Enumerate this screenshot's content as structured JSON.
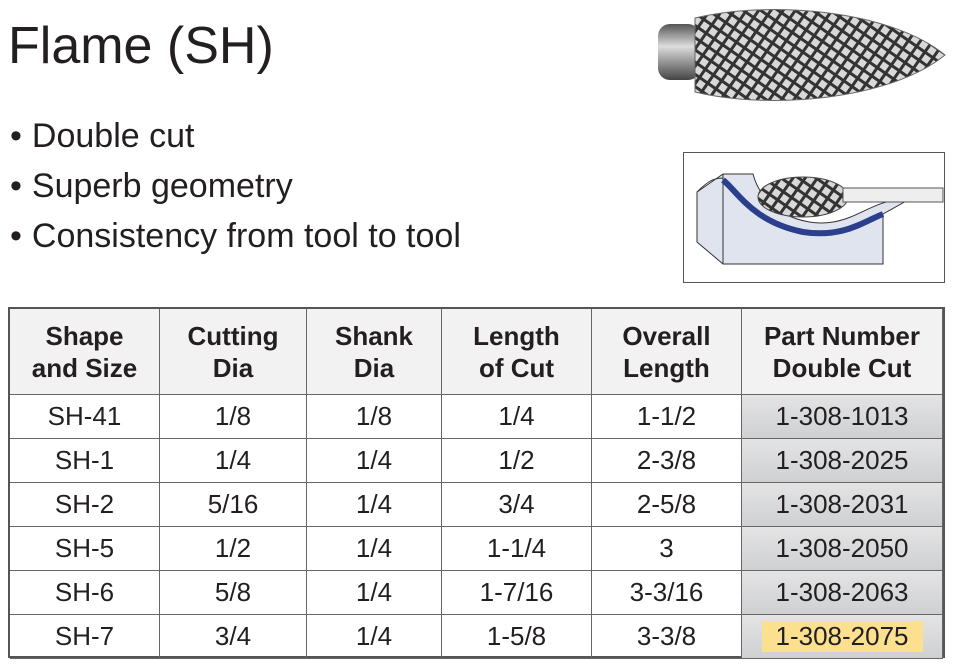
{
  "header": {
    "title": "Flame (SH)"
  },
  "bullets": [
    "Double cut",
    "Superb geometry",
    "Consistency from tool to tool"
  ],
  "table": {
    "columns": [
      [
        "Shape",
        "and Size"
      ],
      [
        "Cutting",
        "Dia"
      ],
      [
        "Shank",
        "Dia"
      ],
      [
        "Length",
        "of Cut"
      ],
      [
        "Overall",
        "Length"
      ],
      [
        "Part Number",
        "Double Cut"
      ]
    ],
    "rows": [
      [
        "SH-41",
        "1/8",
        "1/8",
        "1/4",
        "1-1/2",
        "1-308-1013"
      ],
      [
        "SH-1",
        "1/4",
        "1/4",
        "1/2",
        "2-3/8",
        "1-308-2025"
      ],
      [
        "SH-2",
        "5/16",
        "1/4",
        "3/4",
        "2-5/8",
        "1-308-2031"
      ],
      [
        "SH-5",
        "1/2",
        "1/4",
        "1-1/4",
        "3",
        "1-308-2050"
      ],
      [
        "SH-6",
        "5/8",
        "1/4",
        "1-7/16",
        "3-3/16",
        "1-308-2063"
      ],
      [
        "SH-7",
        "3/4",
        "1/4",
        "1-5/8",
        "3-3/8",
        "1-308-2075"
      ]
    ]
  }
}
